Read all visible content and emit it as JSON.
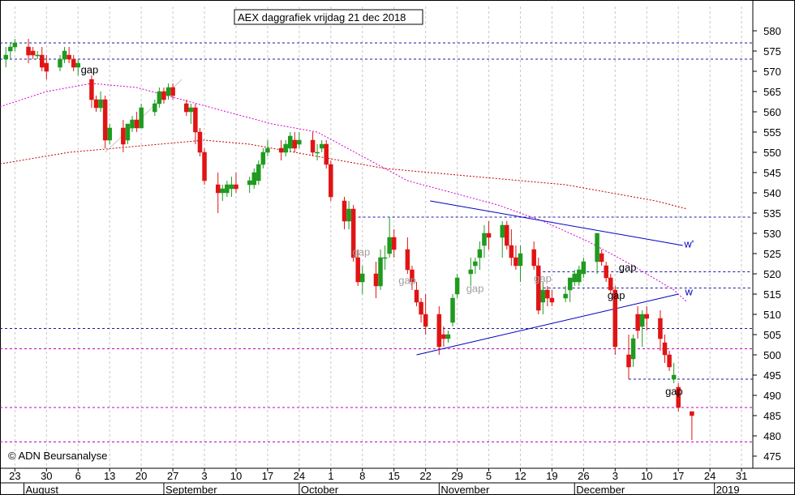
{
  "chart_data": {
    "type": "candlestick",
    "title": "AEX daggrafiek vrijdag 21 dec 2018",
    "copyright": "© ADN Beursanalyse",
    "ylim": [
      472,
      586
    ],
    "y_ticks": [
      475,
      480,
      485,
      490,
      495,
      500,
      505,
      510,
      515,
      520,
      525,
      530,
      535,
      540,
      545,
      550,
      555,
      560,
      565,
      570,
      575,
      580
    ],
    "x_tick_labels": [
      {
        "text": "23",
        "day": -2
      },
      {
        "text": "30",
        "day": 5
      },
      {
        "text": "6",
        "day": 12
      },
      {
        "text": "13",
        "day": 19
      },
      {
        "text": "20",
        "day": 26
      },
      {
        "text": "27",
        "day": 33
      },
      {
        "text": "3",
        "day": 40
      },
      {
        "text": "10",
        "day": 47
      },
      {
        "text": "17",
        "day": 54
      },
      {
        "text": "24",
        "day": 61
      },
      {
        "text": "1",
        "day": 68
      },
      {
        "text": "8",
        "day": 75
      },
      {
        "text": "15",
        "day": 82
      },
      {
        "text": "22",
        "day": 89
      },
      {
        "text": "29",
        "day": 96
      },
      {
        "text": "5",
        "day": 103
      },
      {
        "text": "12",
        "day": 110
      },
      {
        "text": "19",
        "day": 117
      },
      {
        "text": "26",
        "day": 124
      },
      {
        "text": "3",
        "day": 131
      },
      {
        "text": "10",
        "day": 138
      },
      {
        "text": "17",
        "day": 145
      },
      {
        "text": "24",
        "day": 152
      },
      {
        "text": "31",
        "day": 159
      }
    ],
    "month_labels": [
      {
        "text": "August",
        "day": 0
      },
      {
        "text": "September",
        "day": 31
      },
      {
        "text": "October",
        "day": 61
      },
      {
        "text": "November",
        "day": 92
      },
      {
        "text": "December",
        "day": 122
      },
      {
        "text": "2019",
        "day": 153
      }
    ],
    "series": [
      {
        "name": "AEX",
        "type": "candlestick",
        "ohlc": [
          [
            -4,
            573,
            576,
            571,
            574
          ],
          [
            -3,
            575,
            577,
            573,
            576
          ],
          [
            -2,
            576,
            578,
            575,
            577
          ],
          [
            1,
            576,
            578,
            572,
            574
          ],
          [
            2,
            575,
            576,
            573,
            574
          ],
          [
            3,
            574,
            575,
            573,
            574
          ],
          [
            4,
            574,
            576,
            570,
            571
          ],
          [
            5,
            572,
            574,
            568,
            570
          ],
          [
            8,
            571,
            574,
            570,
            573
          ],
          [
            9,
            573,
            576,
            572,
            575
          ],
          [
            10,
            574,
            576,
            572,
            573
          ],
          [
            11,
            573,
            574,
            570,
            571
          ],
          [
            12,
            571,
            573,
            569,
            572
          ],
          [
            15,
            568,
            569,
            561,
            563
          ],
          [
            16,
            563,
            564,
            560,
            561
          ],
          [
            17,
            561,
            565,
            560,
            563
          ],
          [
            18,
            563,
            564,
            551,
            553
          ],
          [
            19,
            553,
            557,
            552,
            556
          ],
          [
            22,
            556,
            558,
            550,
            552
          ],
          [
            23,
            553,
            557,
            552,
            557
          ],
          [
            24,
            556,
            559,
            555,
            558
          ],
          [
            25,
            558,
            560,
            555,
            556
          ],
          [
            26,
            556,
            562,
            556,
            561
          ],
          [
            29,
            560,
            563,
            559,
            562
          ],
          [
            30,
            562,
            566,
            561,
            565
          ],
          [
            31,
            565,
            566,
            562,
            563
          ],
          [
            32,
            564,
            567,
            563,
            566
          ],
          [
            33,
            566,
            567,
            563,
            564
          ],
          [
            36,
            562,
            563,
            559,
            560
          ],
          [
            37,
            560,
            562,
            557,
            561
          ],
          [
            38,
            561,
            562,
            552,
            555
          ],
          [
            39,
            555,
            556,
            549,
            550
          ],
          [
            40,
            550,
            551,
            542,
            543
          ],
          [
            43,
            542,
            545,
            535,
            540
          ],
          [
            44,
            540,
            542,
            538,
            541
          ],
          [
            45,
            540,
            543,
            539,
            542
          ],
          [
            46,
            541,
            544,
            539,
            542
          ],
          [
            47,
            542,
            545,
            540,
            541
          ],
          [
            50,
            542,
            544,
            540,
            543
          ],
          [
            51,
            542,
            546,
            541,
            545
          ],
          [
            52,
            543,
            548,
            542,
            547
          ],
          [
            53,
            547,
            551,
            546,
            550
          ],
          [
            54,
            550,
            553,
            549,
            551
          ],
          [
            57,
            551,
            553,
            548,
            550
          ],
          [
            58,
            550,
            553,
            549,
            552
          ],
          [
            59,
            551,
            555,
            550,
            554
          ],
          [
            60,
            553,
            555,
            550,
            551
          ],
          [
            61,
            552,
            555,
            551,
            553
          ],
          [
            64,
            553,
            555,
            549,
            550
          ],
          [
            65,
            550,
            552,
            548,
            550
          ],
          [
            66,
            551,
            553,
            550,
            552
          ],
          [
            67,
            552,
            553,
            546,
            547
          ],
          [
            68,
            547,
            548,
            538,
            539
          ],
          [
            71,
            538,
            539,
            531,
            533
          ],
          [
            72,
            533,
            538,
            531,
            536
          ],
          [
            73,
            536,
            537,
            523,
            524
          ],
          [
            74,
            524,
            526,
            517,
            518
          ],
          [
            75,
            518,
            522,
            515,
            520
          ],
          [
            78,
            520,
            523,
            514,
            517
          ],
          [
            79,
            517,
            526,
            516,
            524
          ],
          [
            80,
            524,
            527,
            521,
            524
          ],
          [
            81,
            525,
            534,
            524,
            529
          ],
          [
            82,
            529,
            531,
            524,
            526
          ],
          [
            85,
            526,
            529,
            520,
            521
          ],
          [
            86,
            521,
            522,
            516,
            518
          ],
          [
            87,
            516,
            518,
            512,
            513
          ],
          [
            88,
            513,
            514,
            508,
            510
          ],
          [
            89,
            510,
            515,
            505,
            507
          ],
          [
            92,
            510,
            512,
            500,
            502
          ],
          [
            93,
            505,
            507,
            502,
            504
          ],
          [
            94,
            504,
            506,
            503,
            505
          ],
          [
            95,
            508,
            515,
            507,
            514
          ],
          [
            96,
            515,
            520,
            514,
            519
          ],
          [
            99,
            520,
            524,
            517,
            521
          ],
          [
            100,
            522,
            524,
            520,
            523
          ],
          [
            101,
            524,
            528,
            521,
            526
          ],
          [
            102,
            527,
            532,
            524,
            530
          ],
          [
            103,
            530,
            533,
            526,
            529
          ],
          [
            106,
            529,
            533,
            524,
            532
          ],
          [
            107,
            532,
            533,
            526,
            527
          ],
          [
            108,
            527,
            531,
            522,
            524
          ],
          [
            109,
            524,
            527,
            521,
            522
          ],
          [
            110,
            522,
            527,
            518,
            525
          ],
          [
            113,
            526,
            528,
            521,
            522
          ],
          [
            114,
            522,
            524,
            510,
            511
          ],
          [
            115,
            513,
            518,
            510,
            516
          ],
          [
            116,
            516,
            517,
            512,
            514
          ],
          [
            117,
            514,
            516,
            512,
            513
          ],
          [
            120,
            514,
            517,
            513,
            515
          ],
          [
            121,
            516,
            519,
            513,
            519
          ],
          [
            122,
            518,
            521,
            517,
            520
          ],
          [
            123,
            518,
            522,
            517,
            521
          ],
          [
            124,
            520,
            524,
            519,
            523
          ],
          [
            127,
            523,
            530,
            520,
            530
          ],
          [
            128,
            525,
            526,
            522,
            523
          ],
          [
            129,
            522,
            523,
            518,
            519
          ],
          [
            130,
            519,
            520,
            515,
            516
          ],
          [
            131,
            516,
            517,
            500,
            502
          ],
          [
            134,
            500,
            505,
            494,
            497
          ],
          [
            135,
            499,
            505,
            497,
            504
          ],
          [
            136,
            510,
            512,
            504,
            506
          ],
          [
            137,
            507,
            511,
            502,
            510
          ],
          [
            138,
            510,
            512,
            506,
            509
          ],
          [
            141,
            509,
            511,
            501,
            504
          ],
          [
            142,
            503,
            505,
            498,
            500
          ],
          [
            143,
            500,
            501,
            496,
            497
          ],
          [
            144,
            494,
            498,
            493,
            495
          ],
          [
            145,
            492,
            493,
            486,
            487
          ],
          [
            148,
            486,
            486,
            479,
            485
          ]
        ]
      },
      {
        "name": "MA-a",
        "type": "line",
        "color": "#d400d4",
        "points": [
          [
            -6,
            561
          ],
          [
            5,
            565
          ],
          [
            15,
            567
          ],
          [
            25,
            566
          ],
          [
            35,
            563
          ],
          [
            45,
            560
          ],
          [
            55,
            557
          ],
          [
            65,
            555
          ],
          [
            75,
            549
          ],
          [
            85,
            543
          ],
          [
            95,
            540
          ],
          [
            105,
            537
          ],
          [
            115,
            533
          ],
          [
            125,
            528
          ],
          [
            135,
            522
          ],
          [
            144,
            516
          ],
          [
            147,
            513
          ]
        ]
      },
      {
        "name": "MA-b",
        "type": "line",
        "color": "#c00000",
        "points": [
          [
            -6,
            547
          ],
          [
            10,
            550
          ],
          [
            20,
            551
          ],
          [
            30,
            552
          ],
          [
            40,
            553
          ],
          [
            50,
            552
          ],
          [
            60,
            550
          ],
          [
            70,
            548
          ],
          [
            80,
            546
          ],
          [
            90,
            545
          ],
          [
            100,
            544
          ],
          [
            110,
            543
          ],
          [
            120,
            542
          ],
          [
            130,
            540
          ],
          [
            140,
            538
          ],
          [
            147,
            536
          ]
        ]
      }
    ],
    "h_lines": [
      {
        "y": 577,
        "color": "#1a1aa0"
      },
      {
        "y": 573,
        "color": "#1a1aa0"
      },
      {
        "y": 534,
        "color": "#1a1aa0",
        "from_day": 73
      },
      {
        "y": 520.5,
        "color": "#1a1aa0",
        "from_day": 115
      },
      {
        "y": 516.5,
        "color": "#1a1aa0",
        "from_day": 114
      },
      {
        "y": 506.5,
        "color": "#1a1aa0"
      },
      {
        "y": 501.5,
        "color": "#c000c0"
      },
      {
        "y": 494,
        "color": "#1a1aa0",
        "from_day": 134
      },
      {
        "y": 487,
        "color": "#c000c0"
      },
      {
        "y": 478.5,
        "color": "#c000c0"
      }
    ],
    "trend_lines": [
      {
        "x1": 90,
        "y1": 538,
        "x2": 146,
        "y2": 527,
        "color": "#0000c0"
      },
      {
        "x1": 87,
        "y1": 500,
        "x2": 145,
        "y2": 515,
        "color": "#0000c0"
      },
      {
        "x1": 18,
        "y1": 550,
        "x2": 35,
        "y2": 568,
        "color": "#c8c8c8"
      }
    ],
    "annotations": [
      {
        "text": "gap",
        "day": 12.6,
        "y": 569.5,
        "color": "#000000"
      },
      {
        "text": "gap",
        "day": 72.8,
        "y": 524.5,
        "color": "#a0a0a0"
      },
      {
        "text": "gap",
        "day": 83.0,
        "y": 517.5,
        "color": "#a0a0a0"
      },
      {
        "text": "gap",
        "day": 98.0,
        "y": 515.5,
        "color": "#a0a0a0"
      },
      {
        "text": "gap",
        "day": 113.0,
        "y": 518.0,
        "color": "#a0a0a0"
      },
      {
        "text": "gap",
        "day": 129.3,
        "y": 513.8,
        "color": "#000000"
      },
      {
        "text": "gap",
        "day": 131.8,
        "y": 520.7,
        "color": "#000000"
      },
      {
        "text": "gap",
        "day": 142.1,
        "y": 490.1,
        "color": "#000000"
      },
      {
        "text": "w'",
        "day": 146.3,
        "y": 526.5,
        "color": "#0000c0"
      },
      {
        "text": "w",
        "day": 146.5,
        "y": 514.7,
        "color": "#0000c0"
      }
    ],
    "colors": {
      "up": "#1f9a1f",
      "down": "#e01414",
      "grid": "#c8c8c8"
    },
    "grid": true
  }
}
